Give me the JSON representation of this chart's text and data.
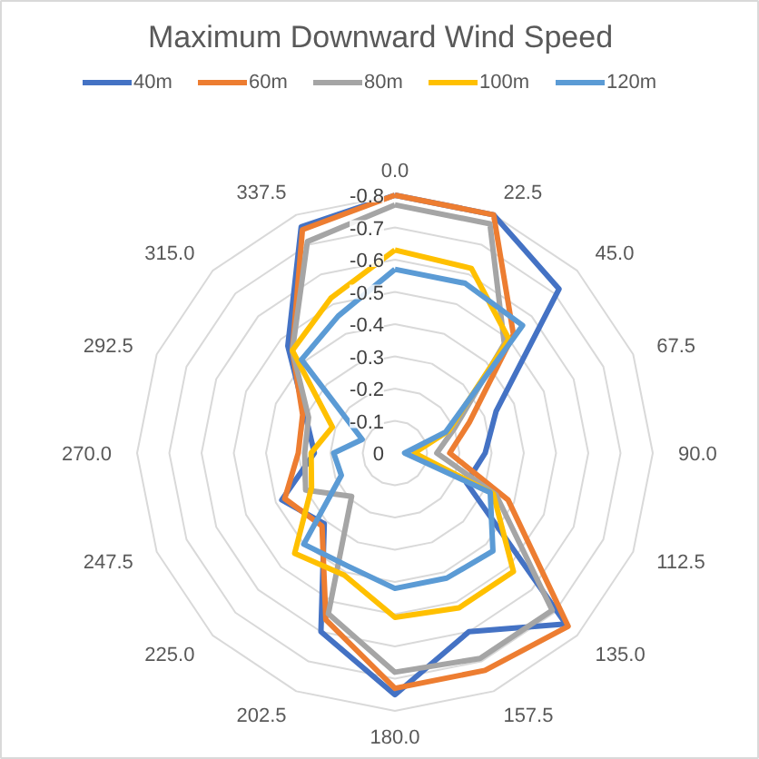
{
  "chart_data": {
    "type": "radar",
    "title": "Maximum Downward Wind Speed",
    "categories": [
      "0.0",
      "22.5",
      "45.0",
      "67.5",
      "90.0",
      "112.5",
      "135.0",
      "157.5",
      "180.0",
      "202.5",
      "225.0",
      "247.5",
      "270.0",
      "292.5",
      "315.0",
      "337.5"
    ],
    "ylim": [
      0,
      -0.8
    ],
    "yticks": [
      0,
      -0.1,
      -0.2,
      -0.3,
      -0.4,
      -0.5,
      -0.6,
      -0.7,
      -0.8
    ],
    "grid": true,
    "legend": "top",
    "marker": "none",
    "line_style": "solid",
    "series": [
      {
        "name": "40m",
        "color": "#4472c4",
        "values": [
          -0.8,
          -0.8,
          -0.72,
          -0.34,
          -0.28,
          -0.24,
          -0.75,
          -0.6,
          -0.75,
          -0.6,
          -0.31,
          -0.38,
          -0.25,
          -0.3,
          -0.47,
          -0.76
        ]
      },
      {
        "name": "60m",
        "color": "#ed7d31",
        "values": [
          -0.8,
          -0.8,
          -0.52,
          -0.25,
          -0.17,
          -0.38,
          -0.76,
          -0.73,
          -0.73,
          -0.56,
          -0.32,
          -0.37,
          -0.3,
          -0.31,
          -0.45,
          -0.75
        ]
      },
      {
        "name": "80m",
        "color": "#a5a5a5",
        "values": [
          -0.77,
          -0.77,
          -0.48,
          -0.2,
          -0.13,
          -0.34,
          -0.69,
          -0.69,
          -0.68,
          -0.54,
          -0.19,
          -0.3,
          -0.28,
          -0.29,
          -0.45,
          -0.71
        ]
      },
      {
        "name": "100m",
        "color": "#ffc000",
        "values": [
          -0.63,
          -0.62,
          -0.5,
          -0.18,
          -0.06,
          -0.33,
          -0.52,
          -0.52,
          -0.51,
          -0.41,
          -0.44,
          -0.28,
          -0.26,
          -0.21,
          -0.45,
          -0.52
        ]
      },
      {
        "name": "120m",
        "color": "#5b9bd5",
        "values": [
          -0.57,
          -0.57,
          -0.56,
          -0.17,
          -0.03,
          -0.32,
          -0.43,
          -0.42,
          -0.42,
          -0.38,
          -0.4,
          -0.18,
          -0.19,
          -0.11,
          -0.41,
          -0.46
        ]
      }
    ]
  }
}
